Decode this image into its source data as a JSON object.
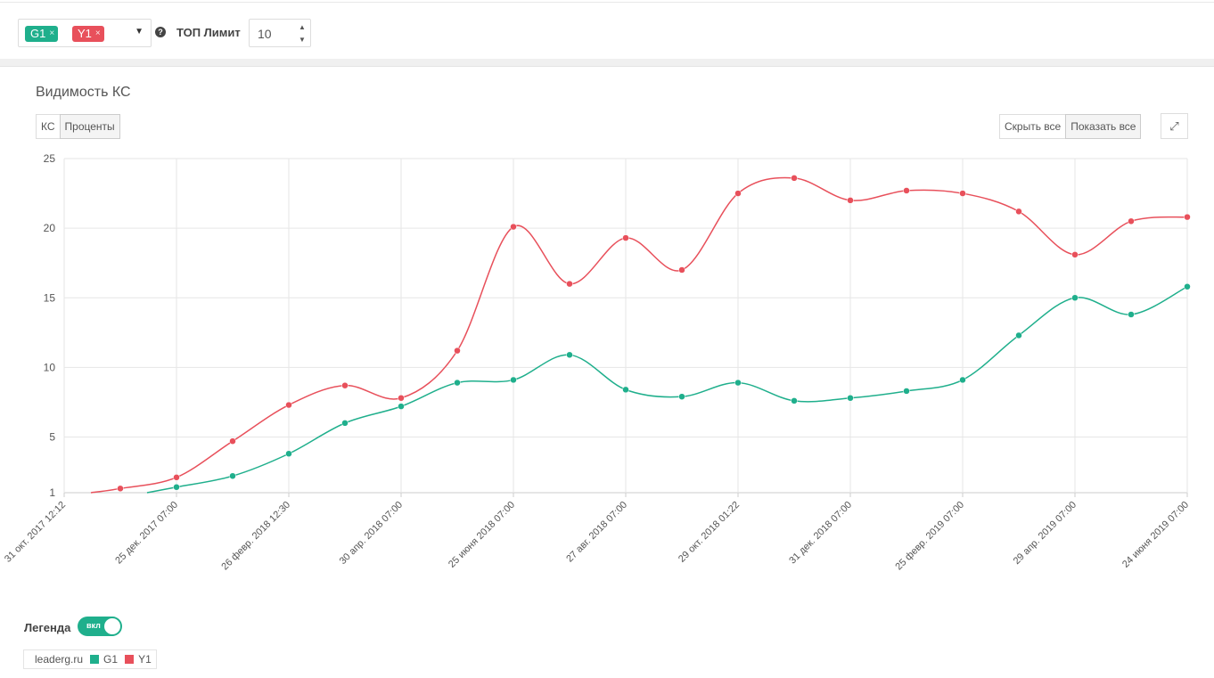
{
  "filters": {
    "tags": [
      {
        "label": "G1",
        "color": "#1faf8c"
      },
      {
        "label": "Y1",
        "color": "#e8505b"
      }
    ],
    "remove_glyph": "×",
    "caret_glyph": "▼",
    "help_glyph": "?",
    "limit_label": "ТОП Лимит",
    "limit_value": "10"
  },
  "widget": {
    "title": "Видимость КС",
    "mode_buttons": [
      "КС",
      "Проценты"
    ],
    "active_mode": "Проценты",
    "hide_all": "Скрыть все",
    "show_all": "Показать все",
    "expand_icon": "expand-icon"
  },
  "legend": {
    "label": "Легенда",
    "toggle_text": "вкл",
    "domain": "leaderg.ru",
    "entries": [
      {
        "name": "G1",
        "color": "#1faf8c"
      },
      {
        "name": "Y1",
        "color": "#e8505b"
      }
    ]
  },
  "chart_data": {
    "type": "line",
    "title": "",
    "xlabel": "",
    "ylabel": "",
    "ylim": [
      1,
      25
    ],
    "yticks": [
      1,
      5,
      10,
      15,
      20,
      25
    ],
    "grid": true,
    "legend_position": "bottom-left",
    "x_tick_labels": [
      "31 окт. 2017 12:12",
      "25 дек. 2017 07:00",
      "26 февр. 2018 12:30",
      "30 апр. 2018 07:00",
      "25 июня 2018 07:00",
      "27 авг. 2018 07:00",
      "29 окт. 2018 01:22",
      "31 дек. 2018 07:00",
      "25 февр. 2019 07:00",
      "29 апр. 2019 07:00",
      "24 июня 2019 07:00"
    ],
    "x_points": 21,
    "series": [
      {
        "name": "G1",
        "color": "#1faf8c",
        "start_index": 2,
        "values": [
          1.4,
          2.2,
          3.8,
          6.0,
          7.2,
          8.9,
          9.1,
          10.9,
          8.4,
          7.9,
          8.9,
          7.6,
          7.8,
          8.3,
          9.1,
          12.3,
          15.0,
          13.8,
          15.8
        ]
      },
      {
        "name": "Y1",
        "color": "#e8505b",
        "start_index": 1,
        "values": [
          1.3,
          2.1,
          4.7,
          7.3,
          8.7,
          7.8,
          11.2,
          20.1,
          16.0,
          19.3,
          17.0,
          22.5,
          23.6,
          22.0,
          22.7,
          22.5,
          21.2,
          18.1,
          20.5,
          20.8
        ]
      }
    ]
  }
}
